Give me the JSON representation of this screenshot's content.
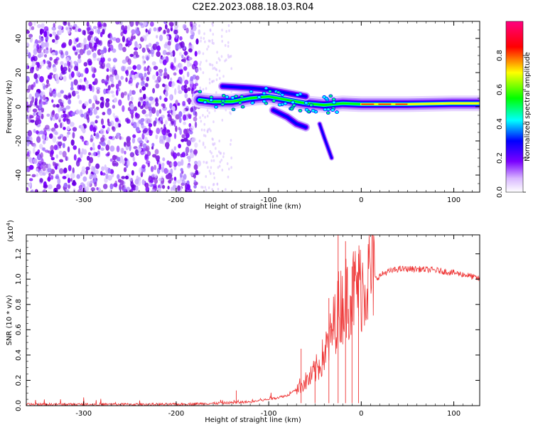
{
  "figure": {
    "title": "C2E2.2023.088.18.03.R04"
  },
  "chart_data": [
    {
      "type": "heatmap",
      "title": "C2E2.2023.088.18.03.R04",
      "xlabel": "Height of straight line (km)",
      "ylabel": "Frequency (Hz)",
      "xlim": [
        -362,
        128
      ],
      "ylim": [
        -50,
        50
      ],
      "xticks": [
        -300,
        -200,
        -100,
        0,
        100
      ],
      "yticks": [
        -40,
        -20,
        0,
        20,
        40
      ],
      "noise_region_x": [
        -362,
        -175
      ],
      "sparse_noise_x": [
        -175,
        -140
      ],
      "trace": [
        {
          "x": -175,
          "y": 4
        },
        {
          "x": -160,
          "y": 3
        },
        {
          "x": -140,
          "y": 3
        },
        {
          "x": -120,
          "y": 5
        },
        {
          "x": -100,
          "y": 6
        },
        {
          "x": -80,
          "y": 4
        },
        {
          "x": -60,
          "y": 2
        },
        {
          "x": -40,
          "y": 1
        },
        {
          "x": -20,
          "y": 2
        },
        {
          "x": 0,
          "y": 1.5
        },
        {
          "x": 50,
          "y": 1.5
        },
        {
          "x": 100,
          "y": 2
        },
        {
          "x": 128,
          "y": 2
        }
      ],
      "upper_branch": [
        {
          "x": -150,
          "y": 12
        },
        {
          "x": -120,
          "y": 11
        },
        {
          "x": -100,
          "y": 10
        },
        {
          "x": -80,
          "y": 8
        },
        {
          "x": -60,
          "y": 6
        }
      ],
      "lower_branch": [
        {
          "x": -95,
          "y": -2
        },
        {
          "x": -80,
          "y": -6
        },
        {
          "x": -70,
          "y": -10
        },
        {
          "x": -60,
          "y": -12
        }
      ],
      "tail_branch": [
        {
          "x": -45,
          "y": -10
        },
        {
          "x": -40,
          "y": -18
        },
        {
          "x": -32,
          "y": -30
        }
      ],
      "colorbar": {
        "label": "Normalized spectral amplitude",
        "range": [
          0,
          1
        ],
        "ticks": [
          "0.0",
          "0.2",
          "0.4",
          "0.6",
          "0.8"
        ],
        "stops": [
          "#ffffff",
          "#d9b8ff",
          "#7a00ff",
          "#0000ff",
          "#00ffff",
          "#00ff00",
          "#ffff00",
          "#ff0000",
          "#ff0080"
        ]
      }
    },
    {
      "type": "line",
      "xlabel": "Height of straight line (km)",
      "ylabel": "SNR (10 * v/v)",
      "yscale_label": "(x10",
      "yscale_exp": "4",
      "yscale_close": ")",
      "xlim": [
        -362,
        128
      ],
      "ylim": [
        0,
        1.35
      ],
      "xticks": [
        -300,
        -200,
        -100,
        0,
        100
      ],
      "yticks": [
        "0.0",
        "0.2",
        "0.4",
        "0.6",
        "0.8",
        "1.0",
        "1.2"
      ],
      "color": "#ee3333",
      "series_envelope": [
        {
          "x": -362,
          "y": 0.01
        },
        {
          "x": -300,
          "y": 0.01
        },
        {
          "x": -200,
          "y": 0.01
        },
        {
          "x": -150,
          "y": 0.02
        },
        {
          "x": -120,
          "y": 0.03
        },
        {
          "x": -100,
          "y": 0.05
        },
        {
          "x": -80,
          "y": 0.08
        },
        {
          "x": -65,
          "y": 0.15
        },
        {
          "x": -55,
          "y": 0.2
        },
        {
          "x": -45,
          "y": 0.3
        },
        {
          "x": -35,
          "y": 0.45
        },
        {
          "x": -25,
          "y": 0.7
        },
        {
          "x": -15,
          "y": 0.8
        },
        {
          "x": -5,
          "y": 0.85
        },
        {
          "x": 5,
          "y": 0.9
        },
        {
          "x": 15,
          "y": 1.0
        },
        {
          "x": 25,
          "y": 1.05
        },
        {
          "x": 40,
          "y": 1.08
        },
        {
          "x": 60,
          "y": 1.08
        },
        {
          "x": 80,
          "y": 1.07
        },
        {
          "x": 100,
          "y": 1.05
        },
        {
          "x": 115,
          "y": 1.03
        },
        {
          "x": 128,
          "y": 1.0
        }
      ],
      "spikes": [
        {
          "x": -135,
          "y": 0.12
        },
        {
          "x": -65,
          "y": 0.45
        },
        {
          "x": -50,
          "y": 0.35
        },
        {
          "x": -35,
          "y": 0.85
        },
        {
          "x": -25,
          "y": 1.35
        },
        {
          "x": -17,
          "y": 1.3
        },
        {
          "x": -10,
          "y": 1.1
        },
        {
          "x": -3,
          "y": 1.2
        }
      ]
    }
  ]
}
